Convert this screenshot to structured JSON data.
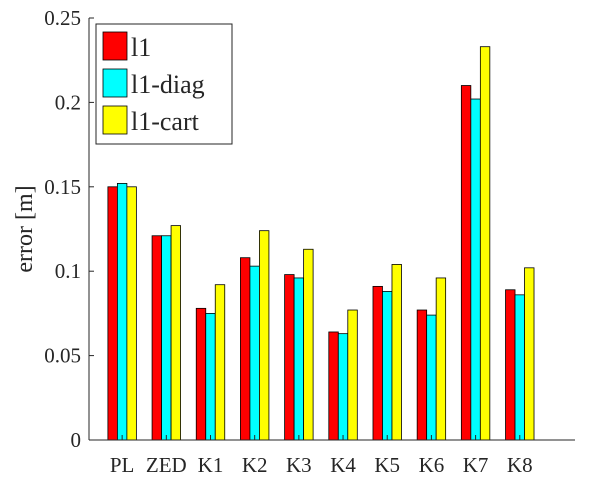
{
  "chart_data": {
    "type": "bar",
    "categories": [
      "PL",
      "ZED",
      "K1",
      "K2",
      "K3",
      "K4",
      "K5",
      "K6",
      "K7",
      "K8"
    ],
    "series": [
      {
        "name": "l1",
        "color": "#ff0000",
        "values": [
          0.15,
          0.121,
          0.078,
          0.108,
          0.098,
          0.064,
          0.091,
          0.077,
          0.21,
          0.089
        ]
      },
      {
        "name": "l1-diag",
        "color": "#00ffff",
        "values": [
          0.152,
          0.121,
          0.075,
          0.103,
          0.096,
          0.063,
          0.088,
          0.074,
          0.202,
          0.086
        ]
      },
      {
        "name": "l1-cart",
        "color": "#ffff00",
        "values": [
          0.15,
          0.127,
          0.092,
          0.124,
          0.113,
          0.077,
          0.104,
          0.096,
          0.233,
          0.102
        ]
      }
    ],
    "title": "",
    "xlabel": "",
    "ylabel": "error [m]",
    "ylim": [
      0,
      0.25
    ],
    "yticks": [
      "0",
      "0.05",
      "0.1",
      "0.15",
      "0.2",
      "0.25"
    ],
    "ytick_values": [
      0,
      0.05,
      0.1,
      0.15,
      0.2,
      0.25
    ],
    "grid": false,
    "legend_position": "top-left"
  }
}
